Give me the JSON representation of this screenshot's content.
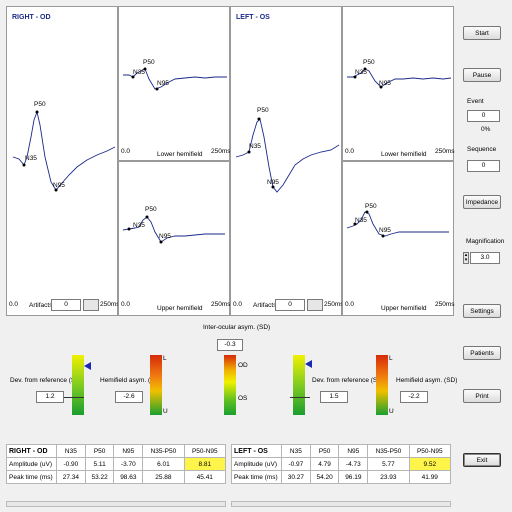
{
  "waveform": {
    "right_label": "RIGHT - OD",
    "left_label": "LEFT - OS",
    "lower_hemifield": "Lower hemifield",
    "upper_hemifield": "Upper hemifield",
    "x_start": "0.0",
    "x_end": "250ms",
    "p50": "P50",
    "n35": "N35",
    "n95": "N95"
  },
  "artifacts": {
    "label": "Artifacts",
    "right_value": "0",
    "left_value": "0"
  },
  "sidebar": {
    "start_label": "Start",
    "pause_label": "Pause",
    "event_label": "Event",
    "event_value": "0",
    "event_percent": "0%",
    "sequence_label": "Sequence",
    "sequence_value": "0",
    "impedance_label": "Impedance",
    "magnification_label": "Magnification",
    "magnification_value": "3.0",
    "settings_label": "Settings",
    "patients_label": "Patients",
    "print_label": "Print",
    "exit_label": "Exit"
  },
  "gauges": {
    "interocular_label": "Inter-ocular asym. (SD)",
    "interocular_value": "-0.3",
    "od": "OD",
    "os": "OS",
    "dev_label": "Dev. from reference (SD)",
    "hemi_label": "Hemifield asym. (SD)",
    "right_dev": "1.2",
    "right_hemi": "-2.6",
    "left_dev": "1.5",
    "left_hemi": "-2.2",
    "l": "L",
    "u": "U"
  },
  "results": {
    "columns": [
      "N35",
      "P50",
      "N95",
      "N35-P50",
      "P50-N95"
    ],
    "amplitude_label": "Amplitude (uV)",
    "peak_label": "Peak time (ms)",
    "right": {
      "title": "RIGHT - OD",
      "amplitude": [
        "-0.90",
        "5.11",
        "-3.70",
        "6.01",
        "8.81"
      ],
      "peak": [
        "27.34",
        "53.22",
        "98.63",
        "25.88",
        "45.41"
      ]
    },
    "left": {
      "title": "LEFT - OS",
      "amplitude": [
        "-0.97",
        "4.79",
        "-4.73",
        "5.77",
        "9.52"
      ],
      "peak": [
        "30.27",
        "54.20",
        "96.19",
        "23.93",
        "41.99"
      ]
    }
  },
  "colors": {
    "trace": "#1a2a8a",
    "highlight": "#fff44a",
    "title": "#1a2a8a"
  }
}
